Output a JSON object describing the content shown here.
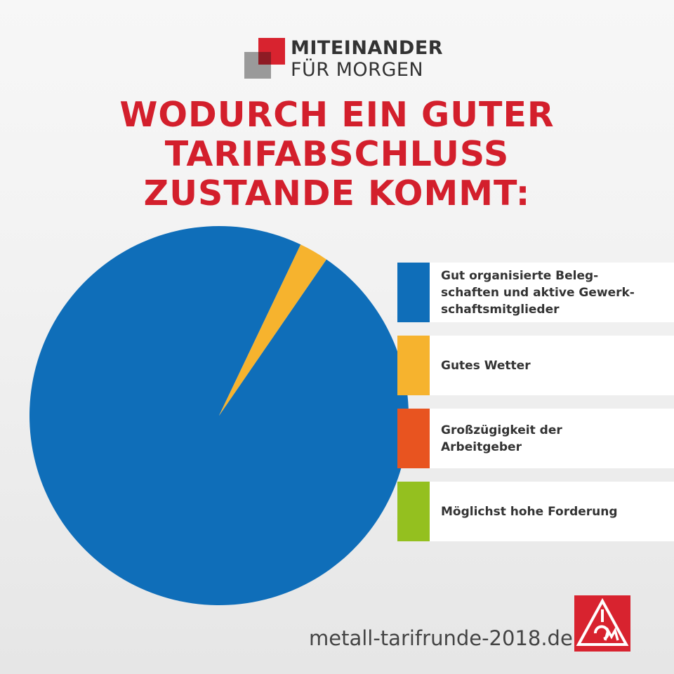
{
  "brand": {
    "line1": "MITEINANDER",
    "line2": "FÜR MORGEN",
    "red": "#d8232f",
    "gray": "#9a9a9a"
  },
  "chart_data": {
    "type": "pie",
    "title_lines": [
      "WODURCH EIN GUTER",
      "TARIFABSCHLUSS",
      "ZUSTANDE KOMMT:"
    ],
    "slices": [
      {
        "label": "Gut organisierte Beleg-\nschaften und aktive Gewerk-\nschaftsmitglieder",
        "value": 97.5,
        "color": "#0f6eb9"
      },
      {
        "label": "Gutes Wetter",
        "value": 2.5,
        "color": "#f6b32e"
      },
      {
        "label": "Großzügigkeit der\nArbeitgeber",
        "value": 0,
        "color": "#e85420"
      },
      {
        "label": "Möglichst hohe Forderung",
        "value": 0,
        "color": "#94c01f"
      }
    ],
    "legend_position": "right"
  },
  "footer": {
    "url": "metall-tarifrunde-2018.de",
    "logo_icon": "ig-metall-logo-icon"
  }
}
